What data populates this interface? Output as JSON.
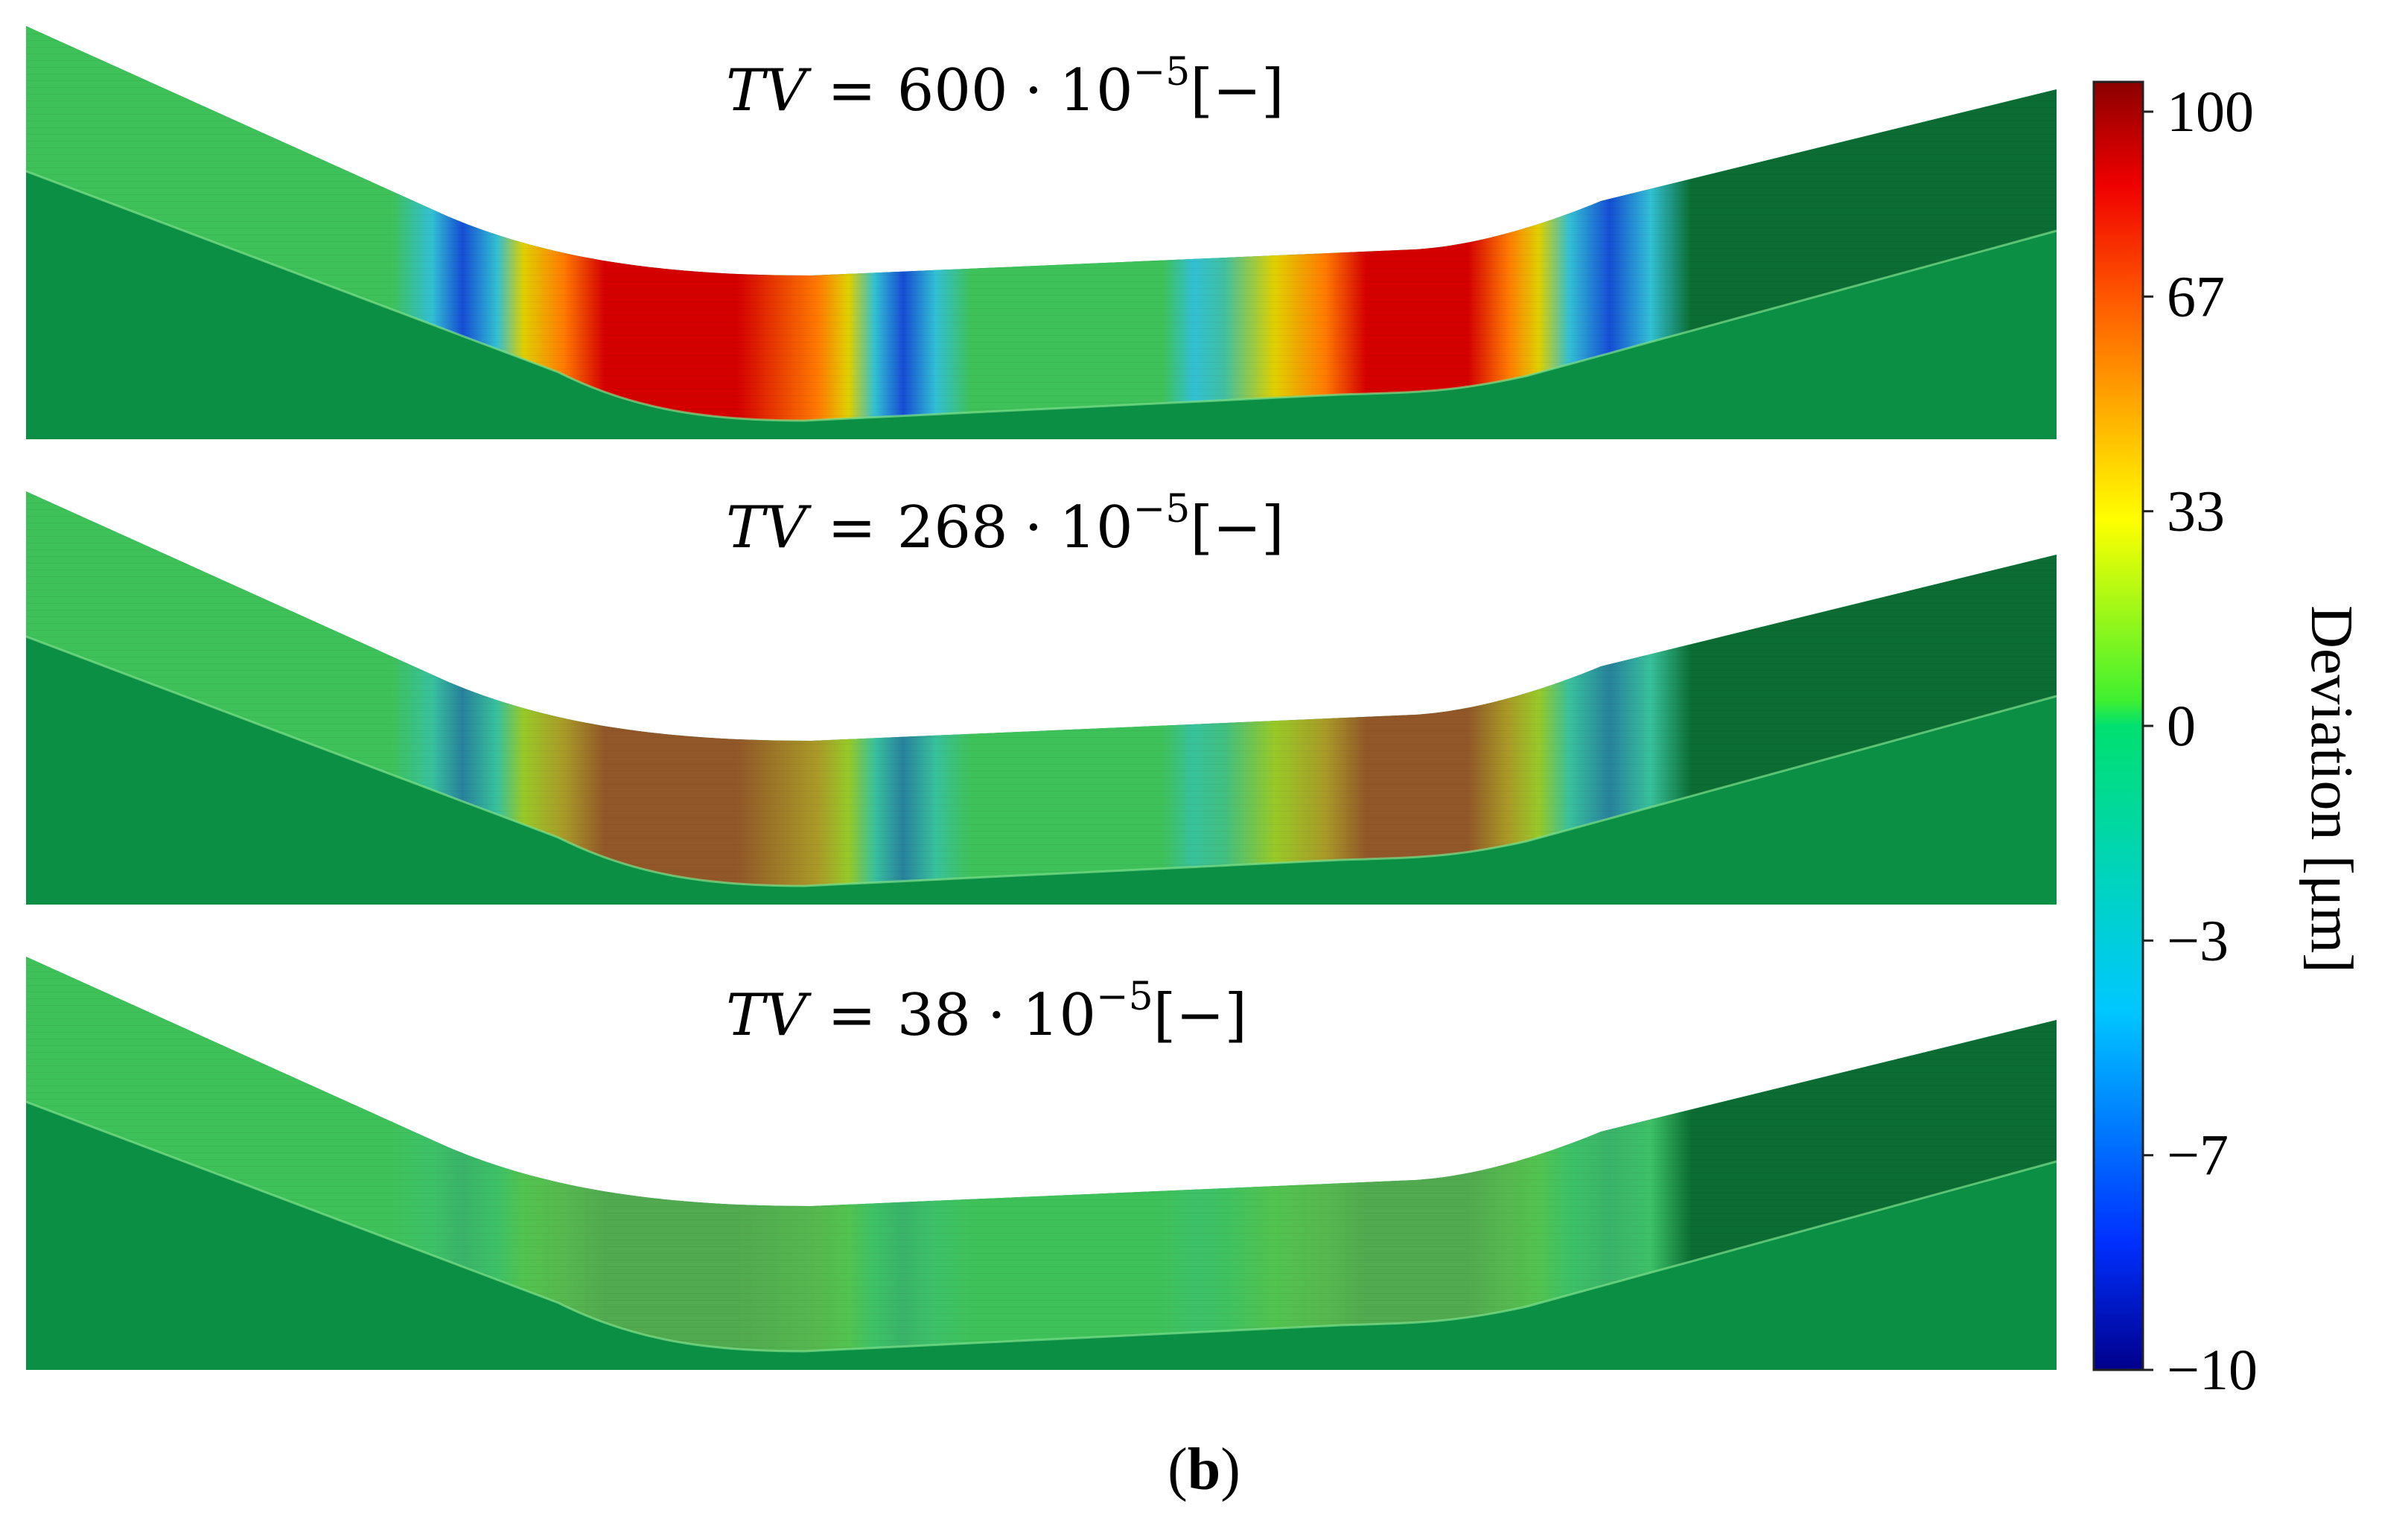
{
  "panels": [
    {
      "prefix": "TV",
      "equals": "=",
      "value": "600",
      "dot": "·",
      "base": "10",
      "exponent": "−5",
      "unit": "[−]",
      "intensity": 1.0
    },
    {
      "prefix": "TV",
      "equals": "=",
      "value": "268",
      "dot": "·",
      "base": "10",
      "exponent": "−5",
      "unit": "[−]",
      "intensity": 0.55
    },
    {
      "prefix": "TV",
      "equals": "=",
      "value": "38",
      "dot": "·",
      "base": "10",
      "exponent": "−5",
      "unit": "[−]",
      "intensity": 0.12
    }
  ],
  "colorbar": {
    "title": "Deviation [μm]",
    "ticks": [
      "100",
      "67",
      "33",
      "0",
      "−3",
      "−7",
      "−10"
    ],
    "colors": [
      "#8b0000",
      "#ff0000",
      "#ff8c00",
      "#ffff00",
      "#00d060",
      "#00e0ff",
      "#0060ff",
      "#00008b"
    ]
  },
  "caption": {
    "open": "(",
    "letter": "b",
    "close": ")"
  },
  "surface_colors": {
    "base": "#3fc15a",
    "dark": "#0a8f45",
    "shade": "#0b6d33"
  }
}
